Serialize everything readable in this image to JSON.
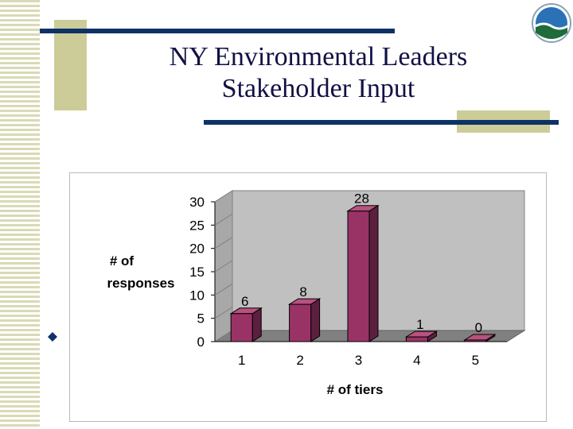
{
  "slide": {
    "title_line1": "NY Environmental Leaders",
    "title_line2": "Stakeholder Input",
    "logo": "agency-emblem-icon",
    "bullet": "diamond-bullet-icon",
    "colors": {
      "navy": "#0d3366",
      "gold": "#cccc99",
      "stripe": "#d9dab5"
    }
  },
  "chart_data": {
    "type": "bar",
    "style": "3d-column",
    "categories": [
      "1",
      "2",
      "3",
      "4",
      "5"
    ],
    "values": [
      6,
      8,
      28,
      1,
      0
    ],
    "xlabel": "# of tiers",
    "ylabel_line1": "# of",
    "ylabel_line2": "responses",
    "ylim": [
      0,
      30
    ],
    "yticks": [
      0,
      5,
      10,
      15,
      20,
      25,
      30
    ],
    "grid": false,
    "legend": "none",
    "bar_color": "#993366",
    "wall_color": "#c0c0c0"
  }
}
